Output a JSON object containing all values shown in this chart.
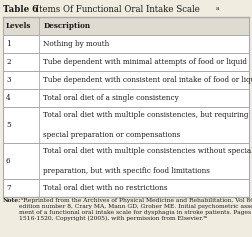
{
  "title_bold": "Table 6",
  "title_normal": " Items Of Functional Oral Intake Scale",
  "title_superscript": "a",
  "header": [
    "Levels",
    "Description"
  ],
  "rows": [
    [
      "1",
      "Nothing by mouth"
    ],
    [
      "2",
      "Tube dependent with minimal attempts of food or liquid"
    ],
    [
      "3",
      "Tube dependent with consistent oral intake of food or liquid"
    ],
    [
      "4",
      "Total oral diet of a single consistency"
    ],
    [
      "5",
      "Total oral diet with multiple consistencies, but requiring\nspecial preparation or compensations"
    ],
    [
      "6",
      "Total oral diet with multiple consistencies without special\npreparation, but with specific food limitations"
    ],
    [
      "7",
      "Total oral diet with no restrictions"
    ]
  ],
  "note_bold": "Note:",
  "note_normal": " ᵃReprinted from the Archives of Physical Medicine and Rehabilitation, Vol 86/\nedition number 8, Crary MA, Mann GD, Groher ME. Initial psychometric assess-\nment of a functional oral intake scale for dysphagia in stroke patients. Pages No.\n1516-1520, Copyright (2005), with permission from Elsevier.ᵐ",
  "bg_color": "#f0ece0",
  "row_bg": "#ffffff",
  "header_bg": "#e0dbd0",
  "border_color": "#aaaaaa",
  "text_color": "#1a1a1a",
  "font_size": 5.2,
  "note_font_size": 4.3,
  "title_font_size": 6.2,
  "col_split": 0.148
}
